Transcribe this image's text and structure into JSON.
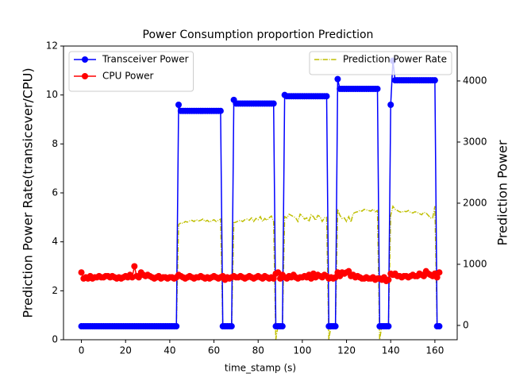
{
  "chart_data": {
    "type": "line",
    "title": "Power Consumption proportion Prediction",
    "xlabel": "time_stamp (s)",
    "ylabel": "Prediction Power Rate(transicever/CPU)",
    "y2label": "Prediction Power",
    "y2label_color": "#ff0000",
    "x": [
      0,
      1,
      2,
      3,
      4,
      5,
      6,
      7,
      8,
      9,
      10,
      11,
      12,
      13,
      14,
      15,
      16,
      17,
      18,
      19,
      20,
      21,
      22,
      23,
      24,
      25,
      26,
      27,
      28,
      29,
      30,
      31,
      32,
      33,
      34,
      35,
      36,
      37,
      38,
      39,
      40,
      41,
      42,
      43,
      44,
      45,
      46,
      47,
      48,
      49,
      50,
      51,
      52,
      53,
      54,
      55,
      56,
      57,
      58,
      59,
      60,
      61,
      62,
      63,
      64,
      65,
      66,
      67,
      68,
      69,
      70,
      71,
      72,
      73,
      74,
      75,
      76,
      77,
      78,
      79,
      80,
      81,
      82,
      83,
      84,
      85,
      86,
      87,
      88,
      89,
      90,
      91,
      92,
      93,
      94,
      95,
      96,
      97,
      98,
      99,
      100,
      101,
      102,
      103,
      104,
      105,
      106,
      107,
      108,
      109,
      110,
      111,
      112,
      113,
      114,
      115,
      116,
      117,
      118,
      119,
      120,
      121,
      122,
      123,
      124,
      125,
      126,
      127,
      128,
      129,
      130,
      131,
      132,
      133,
      134,
      135,
      136,
      137,
      138,
      139,
      140,
      141,
      142,
      143,
      144,
      145,
      146,
      147,
      148,
      149,
      150,
      151,
      152,
      153,
      154,
      155,
      156,
      157,
      158,
      159,
      160,
      161,
      162
    ],
    "series": [
      {
        "name": "Transceiver Power",
        "color": "#0000ff",
        "marker": "o",
        "style": "solid",
        "values": [
          0.55,
          0.55,
          0.55,
          0.55,
          0.55,
          0.55,
          0.55,
          0.55,
          0.55,
          0.55,
          0.55,
          0.55,
          0.55,
          0.55,
          0.55,
          0.55,
          0.55,
          0.55,
          0.55,
          0.55,
          0.55,
          0.55,
          0.55,
          0.55,
          0.55,
          0.55,
          0.55,
          0.55,
          0.55,
          0.55,
          0.55,
          0.55,
          0.55,
          0.55,
          0.55,
          0.55,
          0.55,
          0.55,
          0.55,
          0.55,
          0.55,
          0.55,
          0.55,
          0.55,
          9.6,
          9.35,
          9.35,
          9.35,
          9.35,
          9.35,
          9.35,
          9.35,
          9.35,
          9.35,
          9.35,
          9.35,
          9.35,
          9.35,
          9.35,
          9.35,
          9.35,
          9.35,
          9.35,
          9.35,
          0.55,
          0.55,
          0.55,
          0.55,
          0.55,
          9.8,
          9.65,
          9.65,
          9.65,
          9.65,
          9.65,
          9.65,
          9.65,
          9.65,
          9.65,
          9.65,
          9.65,
          9.65,
          9.65,
          9.65,
          9.65,
          9.65,
          9.65,
          9.65,
          0.55,
          0.55,
          0.55,
          0.55,
          10.0,
          9.95,
          9.95,
          9.95,
          9.95,
          9.95,
          9.95,
          9.95,
          9.95,
          9.95,
          9.95,
          9.95,
          9.95,
          9.95,
          9.95,
          9.95,
          9.95,
          9.95,
          9.95,
          9.95,
          0.55,
          0.55,
          0.55,
          0.55,
          10.65,
          10.25,
          10.25,
          10.25,
          10.25,
          10.25,
          10.25,
          10.25,
          10.25,
          10.25,
          10.25,
          10.25,
          10.25,
          10.25,
          10.25,
          10.25,
          10.25,
          10.25,
          10.25,
          0.55,
          0.55,
          0.55,
          0.55,
          0.55,
          9.6,
          11.4,
          10.6,
          10.6,
          10.6,
          10.6,
          10.6,
          10.6,
          10.6,
          10.6,
          10.6,
          10.6,
          10.6,
          10.6,
          10.6,
          10.6,
          10.6,
          10.6,
          10.6,
          10.6,
          10.6,
          0.55,
          0.55
        ]
      },
      {
        "name": "CPU Power",
        "color": "#ff0000",
        "marker": "o",
        "style": "solid",
        "values": [
          2.75,
          2.5,
          2.55,
          2.5,
          2.6,
          2.5,
          2.55,
          2.55,
          2.6,
          2.55,
          2.55,
          2.6,
          2.6,
          2.55,
          2.6,
          2.55,
          2.5,
          2.55,
          2.5,
          2.55,
          2.6,
          2.55,
          2.65,
          2.55,
          3.0,
          2.6,
          2.55,
          2.75,
          2.65,
          2.6,
          2.65,
          2.6,
          2.55,
          2.5,
          2.55,
          2.6,
          2.5,
          2.55,
          2.55,
          2.5,
          2.55,
          2.55,
          2.5,
          2.55,
          2.65,
          2.6,
          2.55,
          2.5,
          2.55,
          2.6,
          2.55,
          2.5,
          2.55,
          2.55,
          2.6,
          2.55,
          2.5,
          2.55,
          2.5,
          2.55,
          2.6,
          2.55,
          2.5,
          2.55,
          2.6,
          2.45,
          2.55,
          2.5,
          2.55,
          2.6,
          2.55,
          2.55,
          2.6,
          2.55,
          2.5,
          2.55,
          2.6,
          2.55,
          2.5,
          2.55,
          2.6,
          2.55,
          2.5,
          2.6,
          2.55,
          2.5,
          2.55,
          2.5,
          2.7,
          2.75,
          2.5,
          2.65,
          2.55,
          2.5,
          2.6,
          2.55,
          2.65,
          2.55,
          2.5,
          2.55,
          2.55,
          2.6,
          2.55,
          2.65,
          2.5,
          2.7,
          2.55,
          2.65,
          2.6,
          2.55,
          2.65,
          2.6,
          2.5,
          2.55,
          2.5,
          2.55,
          2.75,
          2.6,
          2.75,
          2.7,
          2.75,
          2.8,
          2.6,
          2.65,
          2.55,
          2.6,
          2.55,
          2.5,
          2.5,
          2.55,
          2.5,
          2.5,
          2.55,
          2.45,
          2.5,
          2.5,
          2.45,
          2.55,
          2.4,
          2.45,
          2.7,
          2.65,
          2.7,
          2.6,
          2.6,
          2.55,
          2.6,
          2.6,
          2.55,
          2.6,
          2.65,
          2.6,
          2.6,
          2.7,
          2.65,
          2.6,
          2.8,
          2.7,
          2.65,
          2.6,
          2.7,
          2.55,
          2.75
        ]
      },
      {
        "name": "Prediction Power Rate",
        "color": "#bfbf00",
        "style": "dashdot",
        "axis": "y2",
        "values": [
          0,
          0,
          0,
          0,
          0,
          0,
          0,
          0,
          0,
          0,
          0,
          0,
          0,
          0,
          0,
          0,
          0,
          0,
          0,
          0,
          0,
          0,
          0,
          0,
          0,
          0,
          0,
          0,
          0,
          0,
          0,
          0,
          0,
          0,
          0,
          0,
          0,
          0,
          0,
          0,
          0,
          0,
          0,
          0,
          1650,
          1680,
          1670,
          1700,
          1690,
          1710,
          1720,
          1700,
          1730,
          1710,
          1720,
          1740,
          1700,
          1720,
          1690,
          1710,
          1730,
          1700,
          1720,
          1740,
          0,
          0,
          0,
          0,
          0,
          1680,
          1690,
          1710,
          1720,
          1700,
          1730,
          1740,
          1720,
          1760,
          1700,
          1750,
          1730,
          1780,
          1700,
          1750,
          1720,
          1760,
          1790,
          1700,
          -230,
          0,
          0,
          0,
          1780,
          1760,
          1820,
          1800,
          1780,
          1760,
          1700,
          1820,
          1790,
          1740,
          1760,
          1700,
          1810,
          1780,
          1720,
          1800,
          1780,
          1700,
          1760,
          1770,
          -230,
          0,
          0,
          0,
          1900,
          1800,
          1750,
          1760,
          1700,
          1780,
          1690,
          1830,
          1850,
          1860,
          1880,
          1870,
          1900,
          1890,
          1880,
          1870,
          1900,
          1860,
          1880,
          -230,
          0,
          0,
          0,
          0,
          1800,
          1950,
          1900,
          1880,
          1860,
          1850,
          1870,
          1860,
          1880,
          1850,
          1840,
          1860,
          1850,
          1830,
          1810,
          1850,
          1840,
          1800,
          1760,
          1760,
          1950,
          0,
          0
        ]
      }
    ],
    "xlim": [
      -8.1,
      170.1
    ],
    "xticks": [
      0,
      20,
      40,
      60,
      80,
      100,
      120,
      140,
      160
    ],
    "ylim": [
      0,
      12
    ],
    "yticks": [
      0,
      2,
      4,
      6,
      8,
      10,
      12
    ],
    "y2lim": [
      -234,
      4571
    ],
    "y2ticks": [
      0,
      1000,
      2000,
      3000,
      4000
    ],
    "grid": false,
    "legend": "upper left",
    "legend2": "upper right"
  }
}
